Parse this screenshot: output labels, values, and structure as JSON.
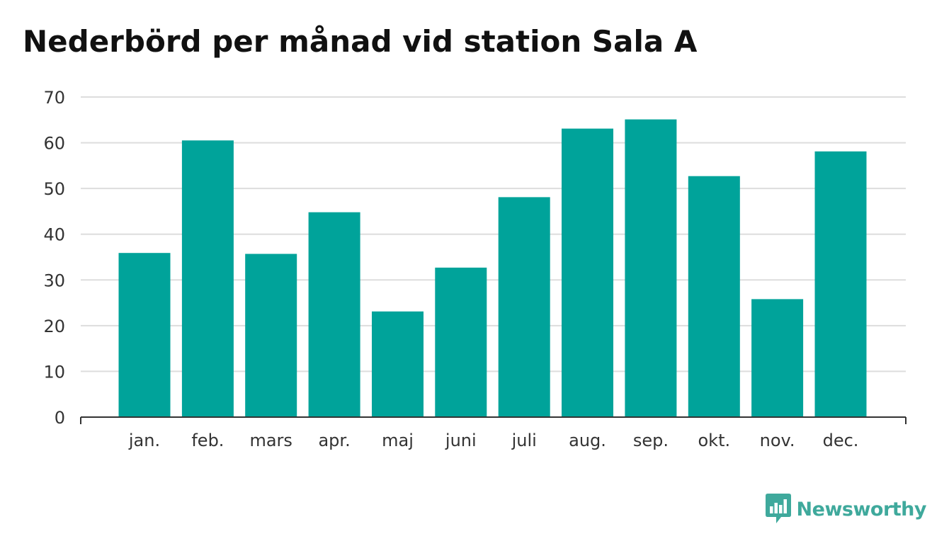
{
  "chart_data": {
    "type": "bar",
    "title": "Nederbörd per månad vid station Sala A",
    "xlabel": "",
    "ylabel": "",
    "categories": [
      "jan.",
      "feb.",
      "mars",
      "apr.",
      "maj",
      "juni",
      "juli",
      "aug.",
      "sep.",
      "okt.",
      "nov.",
      "dec."
    ],
    "values": [
      35.9,
      60.5,
      35.7,
      44.8,
      23.1,
      32.7,
      48.1,
      63.1,
      65.1,
      52.7,
      25.8,
      58.1
    ],
    "ylim": [
      0,
      70
    ],
    "yticks": [
      0,
      10,
      20,
      30,
      40,
      50,
      60,
      70
    ],
    "grid": true,
    "bar_color": "#00a39a"
  },
  "brand": {
    "name": "Newsworthy",
    "color": "#3fa99c",
    "logo_icon": "chart-speech-bubble-icon"
  }
}
